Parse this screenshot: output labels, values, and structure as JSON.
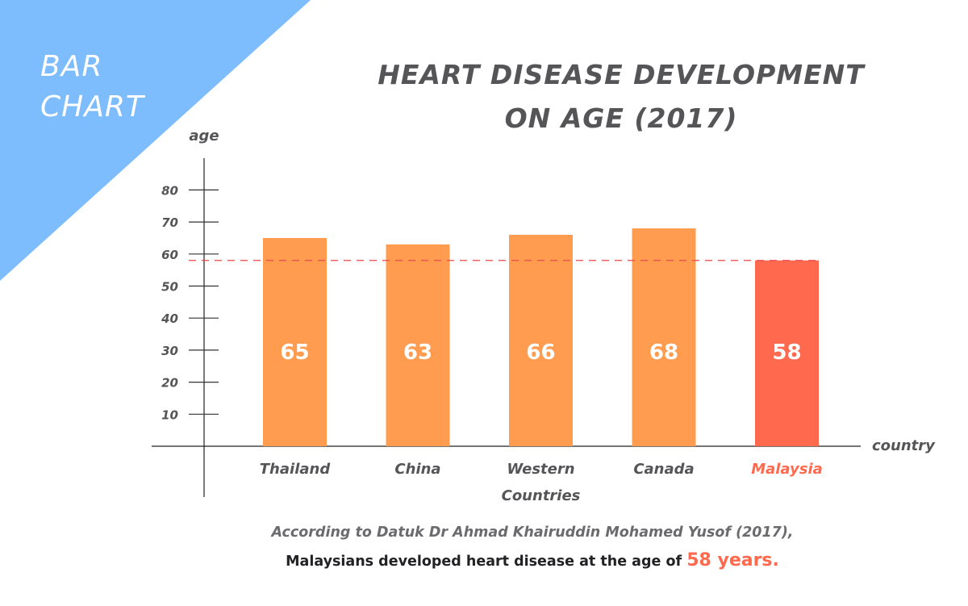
{
  "banner": {
    "line1": "BAR",
    "line2": "CHART",
    "color": "#7dbcfd"
  },
  "title": {
    "line1": "HEART DISEASE DEVELOPMENT",
    "line2": "ON AGE (2017)"
  },
  "chart_data": {
    "type": "bar",
    "title": "HEART DISEASE DEVELOPMENT ON AGE (2017)",
    "xlabel": "country",
    "ylabel": "age",
    "categories": [
      "Thailand",
      "China",
      "Western Countries",
      "Canada",
      "Malaysia"
    ],
    "category_lines": [
      [
        "Thailand"
      ],
      [
        "China"
      ],
      [
        "Western",
        "Countries"
      ],
      [
        "Canada"
      ],
      [
        "Malaysia"
      ]
    ],
    "values": [
      65,
      63,
      66,
      68,
      58
    ],
    "data_labels": [
      "65",
      "63",
      "66",
      "68",
      "58"
    ],
    "highlight_index": 4,
    "colors": {
      "bar": "#ff9c4f",
      "highlight": "#ff6a4f",
      "reference_line": "#e84a4a",
      "axis": "#222222",
      "tick_text": "#555558"
    },
    "ylim": [
      0,
      90
    ],
    "yticks": [
      10,
      20,
      30,
      40,
      50,
      60,
      70,
      80
    ],
    "reference_line": {
      "value": 58,
      "style": "dashed"
    },
    "grid": false,
    "legend": "none"
  },
  "caption": {
    "line1": "According to Datuk Dr Ahmad Khairuddin Mohamed Yusof (2017),",
    "line2_prefix": "Malaysians developed heart disease at the age of ",
    "line2_highlight": "58 years."
  }
}
